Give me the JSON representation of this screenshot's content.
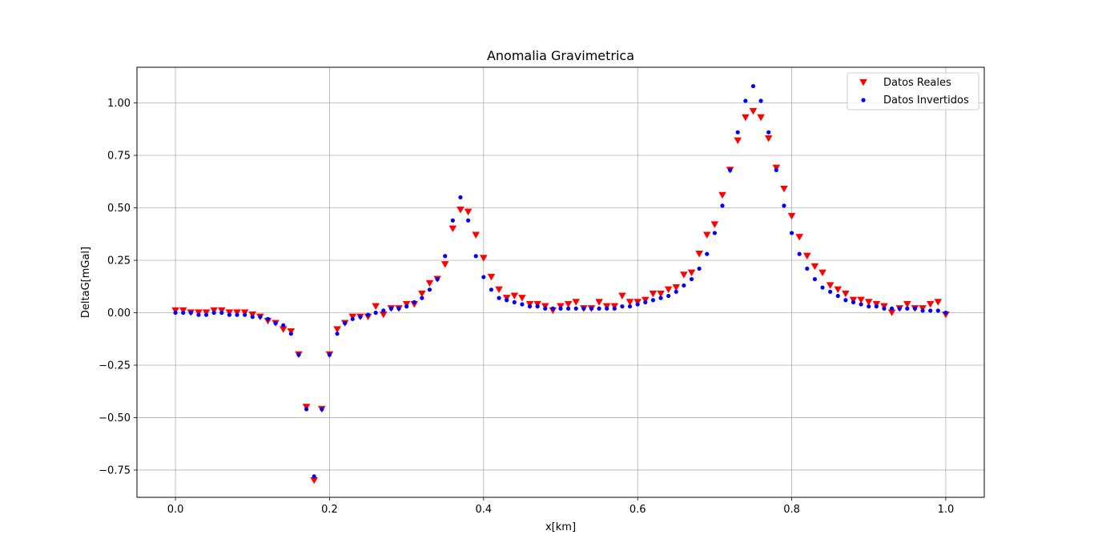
{
  "chart_data": {
    "type": "scatter",
    "title": "Anomalia Gravimetrica",
    "xlabel": "x[km]",
    "ylabel": "DeltaG[mGal]",
    "xlim": [
      -0.05,
      1.05
    ],
    "ylim": [
      -0.88,
      1.17
    ],
    "xticks": [
      0.0,
      0.2,
      0.4,
      0.6,
      0.8,
      1.0
    ],
    "xtick_labels": [
      "0.0",
      "0.2",
      "0.4",
      "0.6",
      "0.8",
      "1.0"
    ],
    "yticks": [
      -0.75,
      -0.5,
      -0.25,
      0.0,
      0.25,
      0.5,
      0.75,
      1.0
    ],
    "ytick_labels": [
      "−0.75",
      "−0.50",
      "−0.25",
      "0.00",
      "0.25",
      "0.50",
      "0.75",
      "1.00"
    ],
    "grid": true,
    "legend_position": "top-right",
    "x": [
      0.0,
      0.01,
      0.02,
      0.03,
      0.04,
      0.05,
      0.06,
      0.07,
      0.08,
      0.09,
      0.1,
      0.11,
      0.12,
      0.13,
      0.14,
      0.15,
      0.16,
      0.17,
      0.18,
      0.19,
      0.2,
      0.21,
      0.22,
      0.23,
      0.24,
      0.25,
      0.26,
      0.27,
      0.28,
      0.29,
      0.3,
      0.31,
      0.32,
      0.33,
      0.34,
      0.35,
      0.36,
      0.37,
      0.38,
      0.39,
      0.4,
      0.41,
      0.42,
      0.43,
      0.44,
      0.45,
      0.46,
      0.47,
      0.48,
      0.49,
      0.5,
      0.51,
      0.52,
      0.53,
      0.54,
      0.55,
      0.56,
      0.57,
      0.58,
      0.59,
      0.6,
      0.61,
      0.62,
      0.63,
      0.64,
      0.65,
      0.66,
      0.67,
      0.68,
      0.69,
      0.7,
      0.71,
      0.72,
      0.73,
      0.74,
      0.75,
      0.76,
      0.77,
      0.78,
      0.79,
      0.8,
      0.81,
      0.82,
      0.83,
      0.84,
      0.85,
      0.86,
      0.87,
      0.88,
      0.89,
      0.9,
      0.91,
      0.92,
      0.93,
      0.94,
      0.95,
      0.96,
      0.97,
      0.98,
      0.99,
      1.0
    ],
    "series": [
      {
        "name": "Datos Reales",
        "marker": "triangle-down",
        "color": "#ff0000",
        "values": [
          0.01,
          0.01,
          0.0,
          0.0,
          0.0,
          0.01,
          0.01,
          0.0,
          0.0,
          0.0,
          -0.01,
          -0.02,
          -0.04,
          -0.05,
          -0.08,
          -0.09,
          -0.2,
          -0.45,
          -0.8,
          -0.46,
          -0.2,
          -0.08,
          -0.05,
          -0.02,
          -0.02,
          -0.02,
          0.03,
          -0.01,
          0.02,
          0.02,
          0.04,
          0.04,
          0.09,
          0.14,
          0.16,
          0.23,
          0.4,
          0.49,
          0.48,
          0.37,
          0.26,
          0.17,
          0.11,
          0.07,
          0.08,
          0.07,
          0.04,
          0.04,
          0.03,
          0.01,
          0.03,
          0.04,
          0.05,
          0.02,
          0.02,
          0.05,
          0.03,
          0.03,
          0.08,
          0.05,
          0.05,
          0.06,
          0.09,
          0.09,
          0.11,
          0.12,
          0.18,
          0.19,
          0.28,
          0.37,
          0.42,
          0.56,
          0.68,
          0.82,
          0.93,
          0.96,
          0.93,
          0.83,
          0.69,
          0.59,
          0.46,
          0.36,
          0.27,
          0.22,
          0.19,
          0.13,
          0.11,
          0.09,
          0.06,
          0.06,
          0.05,
          0.04,
          0.03,
          0.0,
          0.02,
          0.04,
          0.02,
          0.02,
          0.04,
          0.05,
          -0.01
        ]
      },
      {
        "name": "Datos Invertidos",
        "marker": "circle",
        "color": "#0000ff",
        "values": [
          0.0,
          0.0,
          0.0,
          -0.01,
          -0.01,
          0.0,
          0.0,
          -0.01,
          -0.01,
          -0.01,
          -0.02,
          -0.02,
          -0.03,
          -0.05,
          -0.06,
          -0.1,
          -0.2,
          -0.46,
          -0.78,
          -0.46,
          -0.2,
          -0.1,
          -0.05,
          -0.03,
          -0.02,
          -0.01,
          0.0,
          0.01,
          0.02,
          0.02,
          0.03,
          0.05,
          0.07,
          0.11,
          0.16,
          0.27,
          0.44,
          0.55,
          0.44,
          0.27,
          0.17,
          0.11,
          0.07,
          0.06,
          0.05,
          0.04,
          0.03,
          0.03,
          0.02,
          0.02,
          0.02,
          0.02,
          0.02,
          0.02,
          0.02,
          0.02,
          0.02,
          0.02,
          0.03,
          0.03,
          0.04,
          0.05,
          0.06,
          0.07,
          0.08,
          0.1,
          0.13,
          0.16,
          0.21,
          0.28,
          0.38,
          0.51,
          0.68,
          0.86,
          1.01,
          1.08,
          1.01,
          0.86,
          0.68,
          0.51,
          0.38,
          0.28,
          0.21,
          0.16,
          0.12,
          0.1,
          0.08,
          0.06,
          0.05,
          0.04,
          0.03,
          0.03,
          0.02,
          0.02,
          0.02,
          0.02,
          0.02,
          0.01,
          0.01,
          0.01,
          0.0
        ]
      }
    ]
  }
}
